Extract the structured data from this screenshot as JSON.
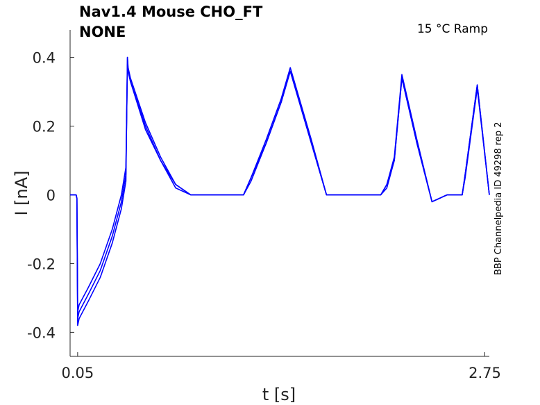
{
  "chart_data": {
    "type": "line",
    "title_line1": "Nav1.4  Mouse  CHO_FT",
    "title_line2": "NONE",
    "annotation": "15 °C  Ramp",
    "side_label": "BBP Channelpedia ID 49298 rep 2",
    "xlabel": "t [s]",
    "ylabel": "I [nA]",
    "x_ticks": [
      0.05,
      2.75
    ],
    "y_ticks": [
      -0.4,
      -0.2,
      0,
      0.2,
      0.4
    ],
    "y_tick_labels": [
      "-0.4",
      "-0.2",
      "0",
      "0.2",
      "0.4"
    ],
    "xlim": [
      0.0,
      2.78
    ],
    "ylim": [
      -0.47,
      0.48
    ],
    "line_color": "#0000ff",
    "grid": false,
    "series": [
      {
        "x": [
          0.0,
          0.04,
          0.045,
          0.05,
          0.06,
          0.12,
          0.2,
          0.28,
          0.34,
          0.37,
          0.38,
          0.385,
          0.4,
          0.5,
          0.6,
          0.7,
          0.8,
          0.9,
          1.0,
          1.1,
          1.15,
          1.2,
          1.3,
          1.4,
          1.46,
          1.5,
          1.6,
          1.7,
          1.8,
          1.9,
          2.0,
          2.06,
          2.1,
          2.15,
          2.2,
          2.3,
          2.4,
          2.5,
          2.54,
          2.57,
          2.6,
          2.62,
          2.7,
          2.78
        ],
        "y": [
          0.0,
          0.0,
          -0.01,
          -0.34,
          -0.32,
          -0.27,
          -0.2,
          -0.1,
          0.0,
          0.08,
          0.38,
          0.36,
          0.33,
          0.2,
          0.1,
          0.03,
          0.0,
          0.0,
          0.0,
          0.0,
          0.0,
          0.05,
          0.15,
          0.27,
          0.36,
          0.3,
          0.15,
          0.0,
          0.0,
          0.0,
          0.0,
          0.0,
          0.03,
          0.1,
          0.34,
          0.15,
          -0.02,
          0.0,
          0.0,
          0.0,
          0.0,
          0.06,
          0.32,
          0.0
        ]
      },
      {
        "x": [
          0.0,
          0.04,
          0.045,
          0.05,
          0.06,
          0.12,
          0.2,
          0.28,
          0.34,
          0.37,
          0.38,
          0.385,
          0.4,
          0.5,
          0.6,
          0.7,
          0.8,
          0.9,
          1.0,
          1.1,
          1.15,
          1.2,
          1.3,
          1.4,
          1.46,
          1.5,
          1.6,
          1.7,
          1.8,
          1.9,
          2.0,
          2.06,
          2.1,
          2.15,
          2.2,
          2.3,
          2.4,
          2.5,
          2.54,
          2.57,
          2.6,
          2.62,
          2.7,
          2.78
        ],
        "y": [
          0.0,
          0.0,
          -0.01,
          -0.36,
          -0.34,
          -0.29,
          -0.22,
          -0.12,
          -0.02,
          0.06,
          0.4,
          0.37,
          0.34,
          0.21,
          0.11,
          0.03,
          0.0,
          0.0,
          0.0,
          0.0,
          0.0,
          0.05,
          0.16,
          0.28,
          0.37,
          0.31,
          0.16,
          0.0,
          0.0,
          0.0,
          0.0,
          0.0,
          0.03,
          0.11,
          0.35,
          0.16,
          -0.02,
          0.0,
          0.0,
          0.0,
          0.0,
          0.06,
          0.32,
          0.0
        ]
      },
      {
        "x": [
          0.0,
          0.04,
          0.045,
          0.05,
          0.06,
          0.12,
          0.2,
          0.28,
          0.34,
          0.37,
          0.38,
          0.385,
          0.4,
          0.5,
          0.6,
          0.7,
          0.8,
          0.9,
          1.0,
          1.1,
          1.15,
          1.2,
          1.3,
          1.4,
          1.46,
          1.5,
          1.6,
          1.7,
          1.8,
          1.9,
          2.0,
          2.06,
          2.1,
          2.15,
          2.2,
          2.3,
          2.4,
          2.5,
          2.54,
          2.57,
          2.6,
          2.62,
          2.7,
          2.78
        ],
        "y": [
          0.0,
          0.0,
          -0.01,
          -0.38,
          -0.36,
          -0.31,
          -0.24,
          -0.14,
          -0.04,
          0.04,
          0.4,
          0.36,
          0.33,
          0.19,
          0.1,
          0.02,
          0.0,
          0.0,
          0.0,
          0.0,
          0.0,
          0.04,
          0.15,
          0.27,
          0.36,
          0.3,
          0.15,
          0.0,
          0.0,
          0.0,
          0.0,
          0.0,
          0.02,
          0.1,
          0.34,
          0.15,
          -0.02,
          0.0,
          0.0,
          0.0,
          0.0,
          0.05,
          0.31,
          0.0
        ]
      }
    ]
  }
}
